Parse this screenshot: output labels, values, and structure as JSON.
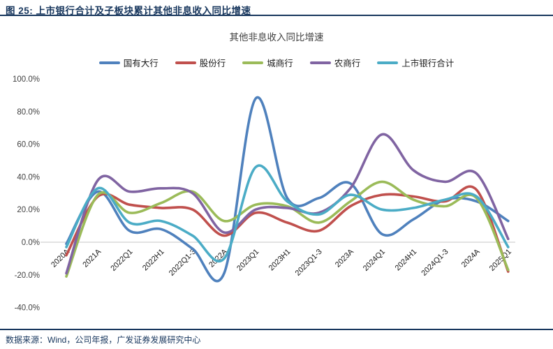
{
  "header": {
    "title": "图 25:  上市银行合计及子板块累计其他非息收入同比增速"
  },
  "source": {
    "text": "数据来源：Wind，公司年报，广发证券发展研究中心"
  },
  "colors": {
    "header_text": "#17365D",
    "rule": "#17365D",
    "axis_text": "#404040",
    "x_label_text": "#1a1a1a",
    "zero_line": "#D9D9D9",
    "background": "#FFFFFF"
  },
  "chart_data": {
    "type": "line",
    "title": "其他非息收入同比增速",
    "xlabel": "",
    "ylabel": "",
    "ylim": [
      -40,
      100
    ],
    "grid": "zero-line-only",
    "legend_position": "top",
    "smooth": true,
    "y_ticks": [
      100,
      80,
      60,
      40,
      20,
      0,
      -20,
      -40
    ],
    "y_tick_labels": [
      "100.0%",
      "80.0%",
      "60.0%",
      "40.0%",
      "20.0%",
      "0.0%",
      "-20.0%",
      "-40.0%"
    ],
    "categories": [
      "2020A",
      "2021A",
      "2022Q1",
      "2022H1",
      "2022Q1-3",
      "2022A",
      "2023Q1",
      "2023H1",
      "2023Q1-3",
      "2023A",
      "2024Q1",
      "2024H1",
      "2024Q1-3",
      "2024A",
      "2025Q1"
    ],
    "unit": "percent",
    "series": [
      {
        "name": "国有大行",
        "key": "state-owned-banks",
        "color": "#4F81BD",
        "values": [
          -1,
          31,
          7,
          8,
          -4,
          -19,
          88,
          27,
          27,
          36,
          5,
          14,
          26,
          25,
          13
        ]
      },
      {
        "name": "股份行",
        "key": "joint-stock-banks",
        "color": "#C0504D",
        "values": [
          -8,
          28,
          23,
          21,
          20,
          4,
          18,
          12,
          7,
          22,
          29,
          28,
          25,
          32,
          -18
        ]
      },
      {
        "name": "城商行",
        "key": "city-commercial-banks",
        "color": "#9BBB59",
        "values": [
          -21,
          29,
          18,
          24,
          31,
          13,
          23,
          22,
          12,
          25,
          37,
          26,
          22,
          27,
          -17
        ]
      },
      {
        "name": "农商行",
        "key": "rural-commercial-banks",
        "color": "#8064A2",
        "values": [
          -19,
          38,
          31,
          33,
          30,
          6,
          20,
          21,
          18,
          33,
          66,
          44,
          37,
          42,
          2
        ]
      },
      {
        "name": "上市银行合计",
        "key": "listed-banks-total",
        "color": "#4BACC6",
        "values": [
          -3,
          33,
          12,
          13,
          4,
          -10,
          46,
          25,
          17,
          29,
          20,
          21,
          26,
          28,
          -3
        ]
      }
    ]
  }
}
